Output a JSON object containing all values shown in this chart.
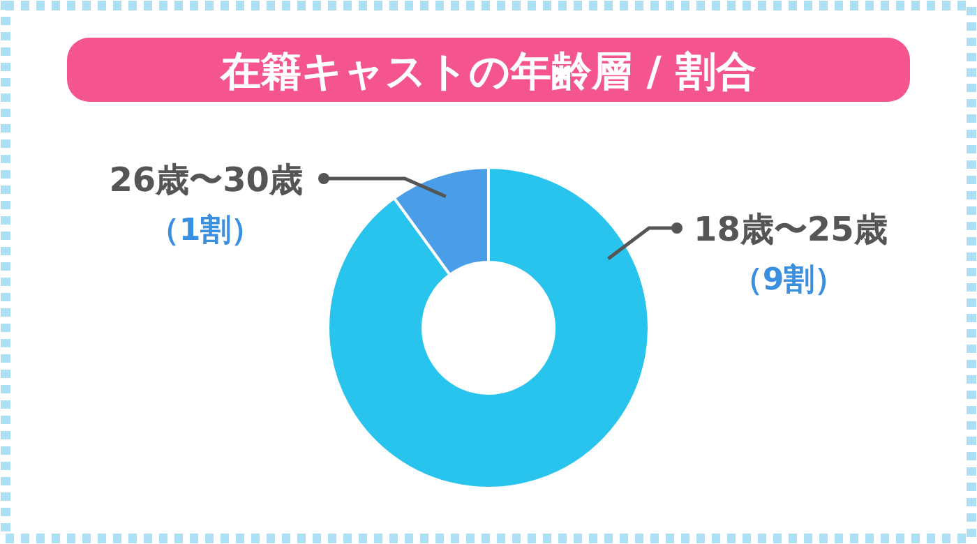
{
  "chart_data": {
    "type": "donut",
    "title": "在籍キャストの年齢層 / 割合",
    "categories": [
      "18歳〜25歳",
      "26歳〜30歳"
    ],
    "values": [
      9,
      1
    ],
    "colors": [
      "#29c4ee",
      "#4a9ee8"
    ],
    "value_labels": [
      "（9割）",
      "（1割）"
    ]
  }
}
